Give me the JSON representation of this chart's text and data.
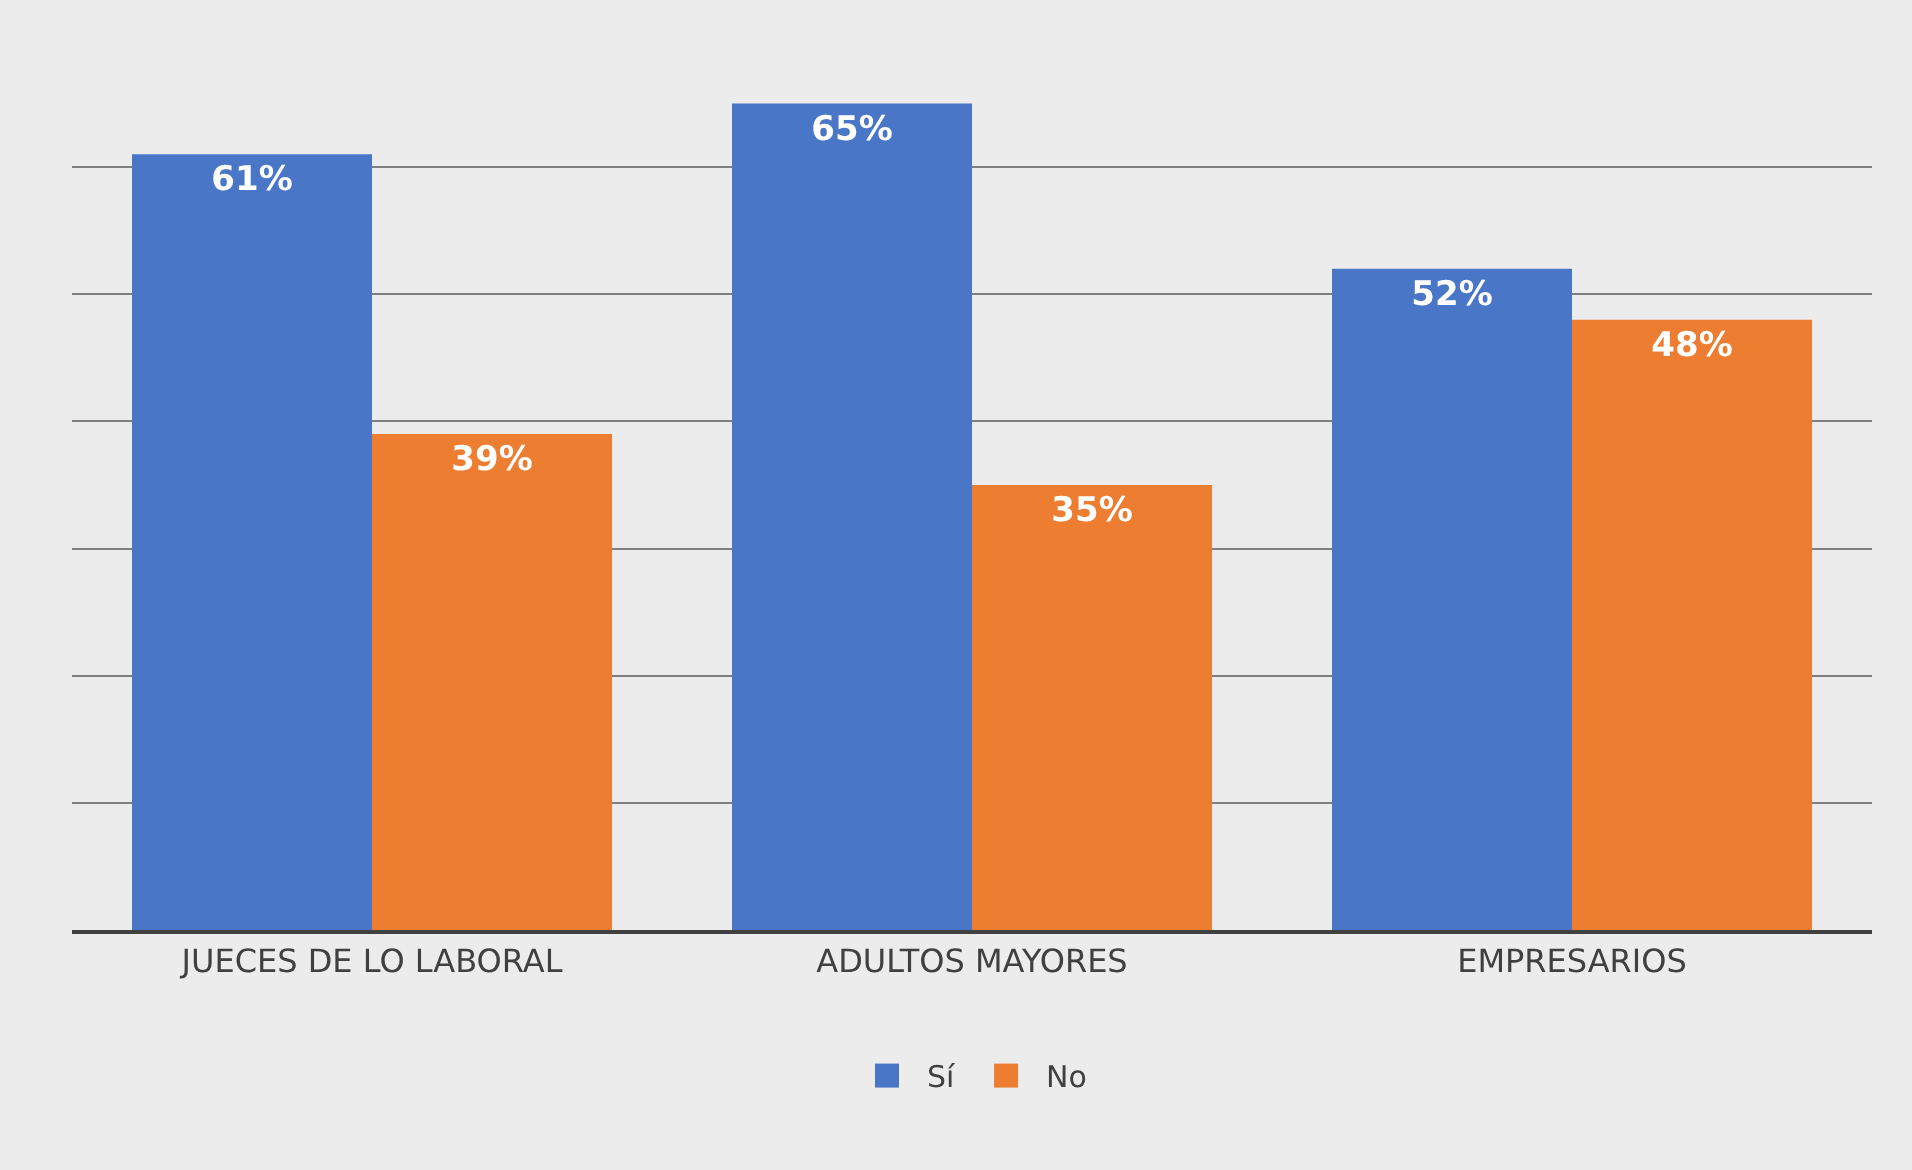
{
  "chart_data": {
    "type": "bar",
    "categories": [
      "JUECES DE LO LABORAL",
      "ADULTOS MAYORES",
      "EMPRESARIOS"
    ],
    "series": [
      {
        "name": "Sí",
        "color": "#4a76c8",
        "values": [
          61,
          65,
          52
        ],
        "value_labels": [
          "61%",
          "65%",
          "52%"
        ]
      },
      {
        "name": "No",
        "color": "#ed7d31",
        "values": [
          39,
          35,
          48
        ],
        "value_labels": [
          "39%",
          "35%",
          "48%"
        ]
      }
    ],
    "yticks": [
      {
        "value": 0,
        "label": null
      },
      {
        "value": 10,
        "label": null
      },
      {
        "value": 20,
        "label": null
      },
      {
        "value": 30,
        "label": null
      },
      {
        "value": 40,
        "label": null
      },
      {
        "value": 50,
        "label": null
      },
      {
        "value": 60,
        "label": null
      }
    ],
    "tick_labels": "x",
    "grid": "y",
    "legend": "bottom"
  }
}
